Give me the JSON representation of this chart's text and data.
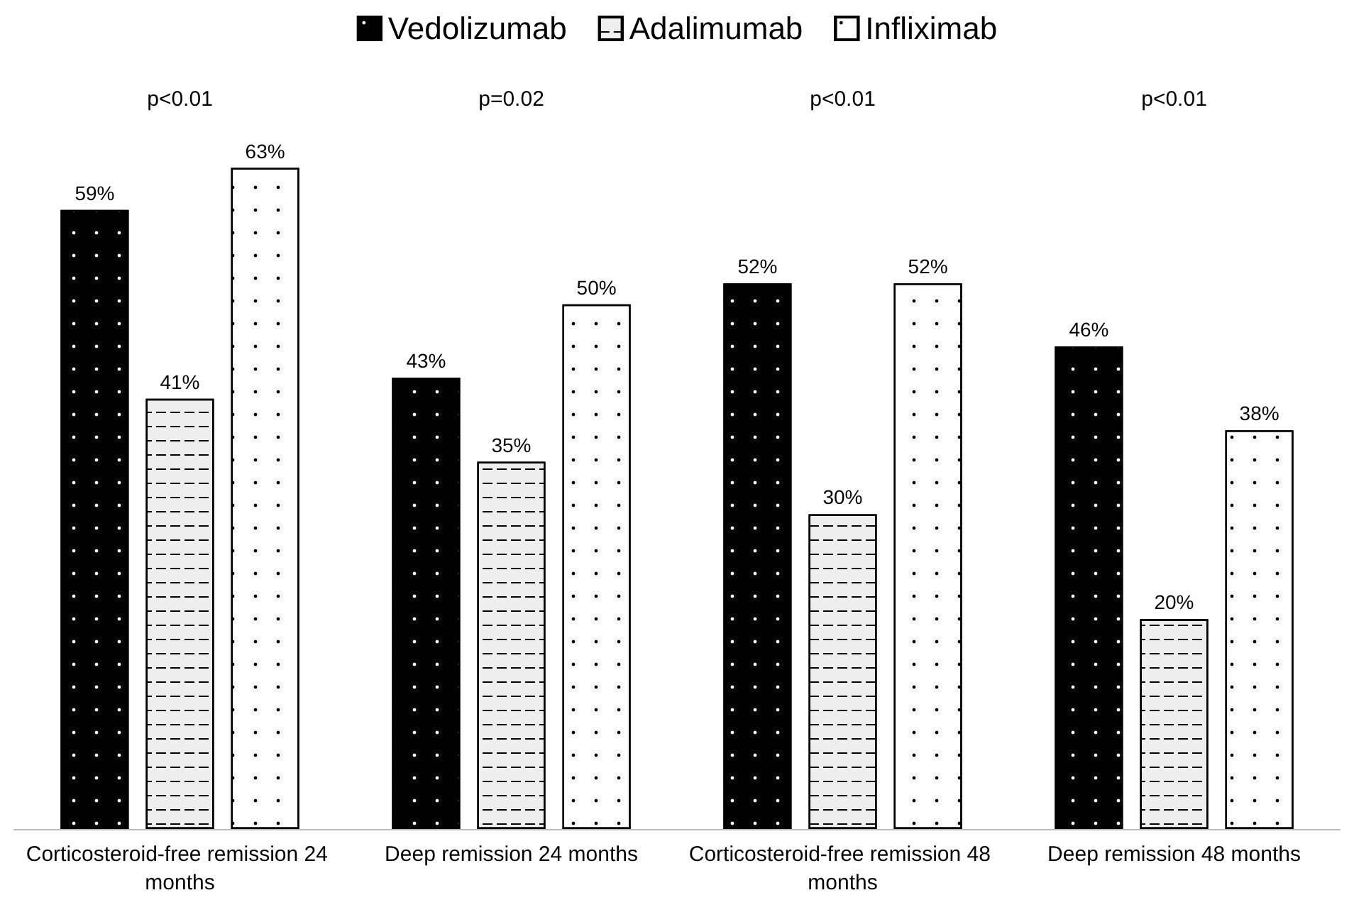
{
  "chart_data": {
    "type": "bar",
    "categories": [
      "Corticosteroid-free remission 24 months",
      "Deep remission 24 months",
      "Corticosteroid-free remission 48 months",
      "Deep remission 48 months"
    ],
    "series": [
      {
        "name": "Vedolizumab",
        "color": "#000000",
        "values": [
          59,
          43,
          52,
          46
        ],
        "value_labels": [
          "59%",
          "43%",
          "52%",
          "46%"
        ]
      },
      {
        "name": "Adalimumab",
        "color": "#eeeeee",
        "values": [
          41,
          35,
          30,
          20
        ],
        "value_labels": [
          "41%",
          "35%",
          "30%",
          "20%"
        ]
      },
      {
        "name": "Infliximab",
        "color": "#ffffff",
        "values": [
          63,
          50,
          52,
          38
        ],
        "value_labels": [
          "63%",
          "50%",
          "52%",
          "38%"
        ]
      }
    ],
    "annotations": [
      "p<0.01",
      "p=0.02",
      "p<0.01",
      "p<0.01"
    ],
    "legend": "top"
  }
}
